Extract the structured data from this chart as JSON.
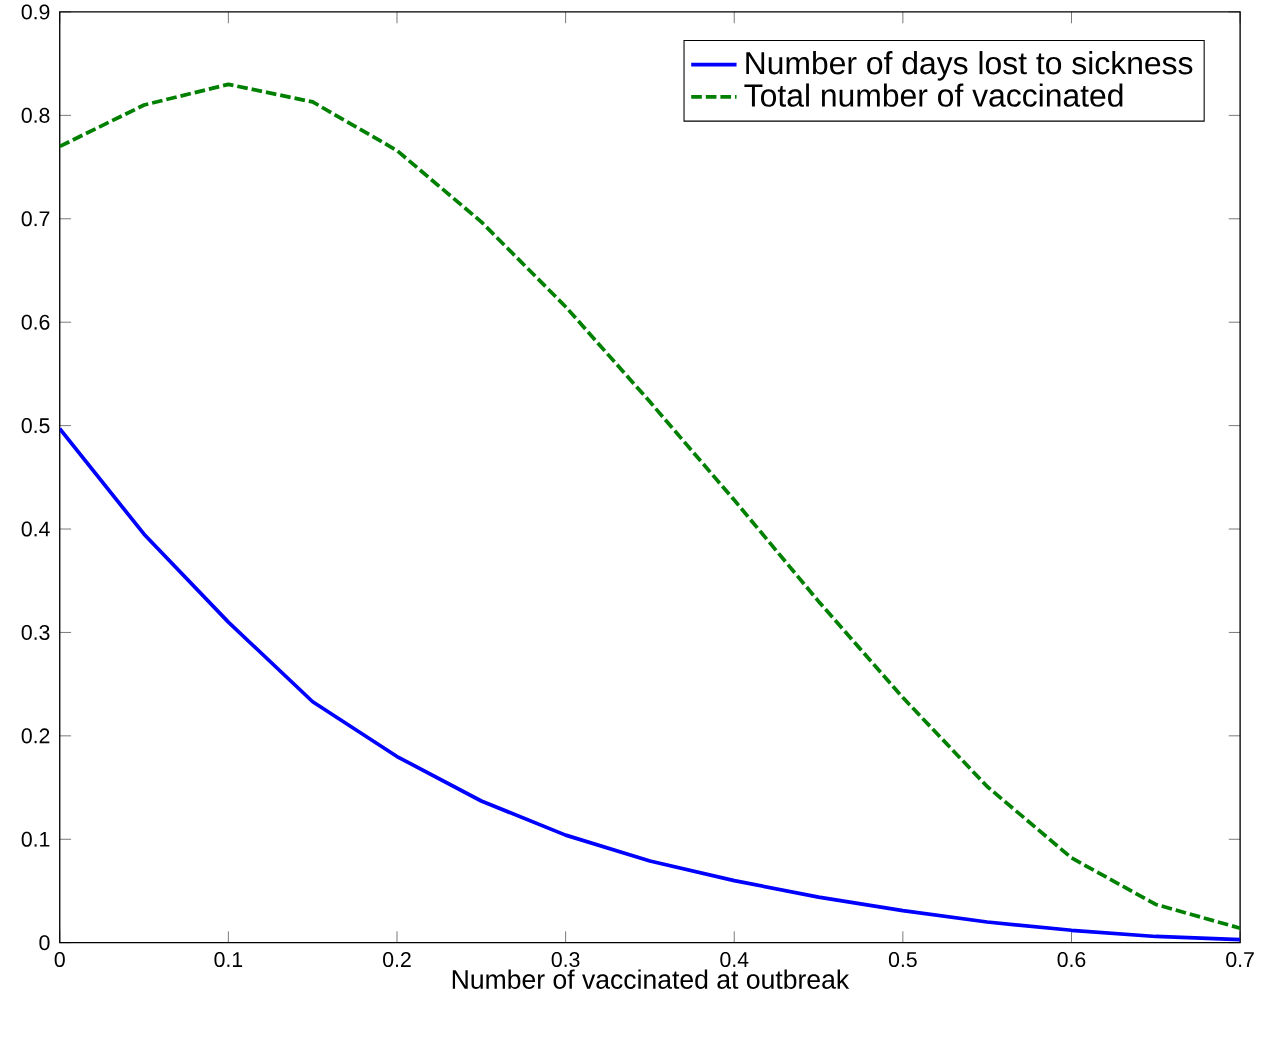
{
  "chart_data": {
    "type": "line",
    "xlabel": "Number of vaccinated at outbreak",
    "x": [
      0,
      0.05,
      0.1,
      0.15,
      0.2,
      0.25,
      0.3,
      0.35,
      0.4,
      0.45,
      0.5,
      0.55,
      0.6,
      0.65,
      0.7
    ],
    "series": [
      {
        "name": "Number of days lost to sickness",
        "color": "#0000ff",
        "line_style": "solid",
        "values": [
          0.497,
          0.395,
          0.31,
          0.233,
          0.18,
          0.137,
          0.104,
          0.079,
          0.06,
          0.044,
          0.031,
          0.02,
          0.012,
          0.006,
          0.003
        ]
      },
      {
        "name": "Total number of vaccinated",
        "color": "#008000",
        "line_style": "dashed",
        "values": [
          0.77,
          0.81,
          0.83,
          0.813,
          0.766,
          0.697,
          0.615,
          0.523,
          0.428,
          0.33,
          0.237,
          0.151,
          0.082,
          0.037,
          0.014
        ]
      }
    ],
    "xlim": [
      0,
      0.7
    ],
    "xticks": [
      0,
      0.1,
      0.2,
      0.3,
      0.4,
      0.5,
      0.6,
      0.7
    ],
    "ylim": [
      0,
      0.9
    ],
    "yticks": [
      0,
      0.1,
      0.2,
      0.3,
      0.4,
      0.5,
      0.6,
      0.7,
      0.8,
      0.9
    ],
    "legend": "top right",
    "grid": false,
    "marker": "none"
  }
}
